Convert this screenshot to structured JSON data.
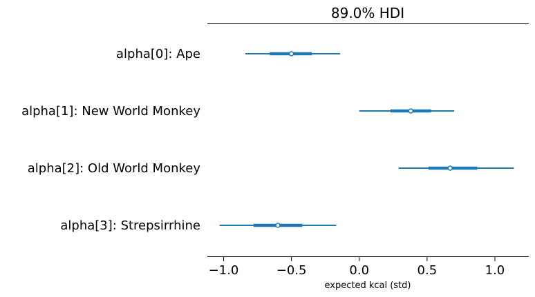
{
  "chart_data": {
    "type": "forest",
    "title": "89.0% HDI",
    "xlabel": "expected kcal (std)",
    "ylabel": "",
    "xlim": [
      -1.12,
      1.25
    ],
    "xticks": [
      -1.0,
      -0.5,
      0.0,
      0.5,
      1.0
    ],
    "xtick_labels": [
      "−1.0",
      "−0.5",
      "0.0",
      "0.5",
      "1.0"
    ],
    "grid": false,
    "series_color": "#1f77b4",
    "series": [
      {
        "label": "alpha[0]: Ape",
        "hdi_low": -0.84,
        "hdi_high": -0.14,
        "iqr_low": -0.66,
        "iqr_high": -0.35,
        "point": -0.5
      },
      {
        "label": "alpha[1]: New World Monkey",
        "hdi_low": 0.0,
        "hdi_high": 0.7,
        "iqr_low": 0.23,
        "iqr_high": 0.53,
        "point": 0.38
      },
      {
        "label": "alpha[2]: Old World Monkey",
        "hdi_low": 0.29,
        "hdi_high": 1.14,
        "iqr_low": 0.51,
        "iqr_high": 0.87,
        "point": 0.67
      },
      {
        "label": "alpha[3]: Strepsirrhine",
        "hdi_low": -1.03,
        "hdi_high": -0.17,
        "iqr_low": -0.78,
        "iqr_high": -0.42,
        "point": -0.6
      }
    ]
  }
}
